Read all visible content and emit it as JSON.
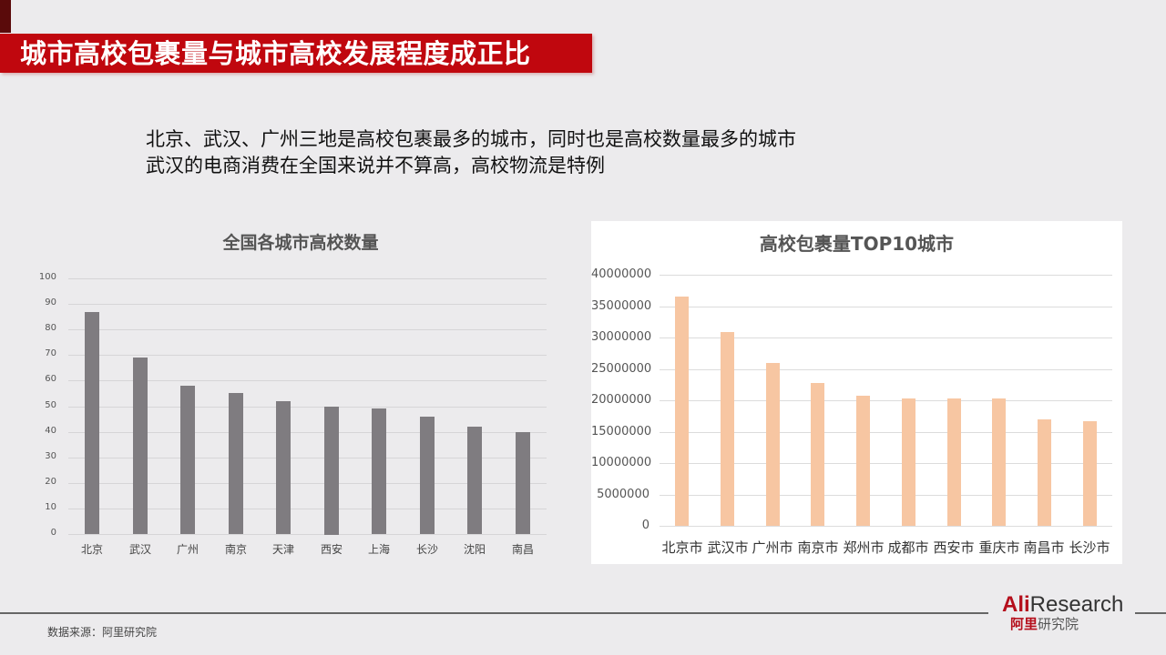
{
  "slide": {
    "title": "城市高校包裹量与城市高校发展程度成正比",
    "subtitle_lines": [
      "北京、武汉、广州三地是高校包裹最多的城市，同时也是高校数量最多的城市",
      "武汉的电商消费在全国来说并不算高，高校物流是特例"
    ],
    "source": "数据来源：阿里研究院",
    "logo": {
      "en_brand": "Ali",
      "en_suffix": "Research",
      "cn_brand": "阿里",
      "cn_suffix": "研究院"
    },
    "colors": {
      "banner": "#c0070e",
      "left_bar": "#7f7c80",
      "right_bar": "#f7c6a2",
      "background": "#ecebed"
    }
  },
  "chart_data": [
    {
      "type": "bar",
      "title": "全国各城市高校数量",
      "categories": [
        "北京",
        "武汉",
        "广州",
        "南京",
        "天津",
        "西安",
        "上海",
        "长沙",
        "沈阳",
        "南昌"
      ],
      "values": [
        87,
        69,
        58,
        55,
        52,
        50,
        49,
        46,
        42,
        40
      ],
      "xlabel": "",
      "ylabel": "",
      "ylim": [
        0,
        100
      ],
      "yticks": [
        "0",
        "10",
        "20",
        "30",
        "40",
        "50",
        "60",
        "70",
        "80",
        "90",
        "100"
      ],
      "grid": true,
      "legend": false
    },
    {
      "type": "bar",
      "title": "高校包裹量TOP10城市",
      "categories": [
        "北京市",
        "武汉市",
        "广州市",
        "南京市",
        "郑州市",
        "成都市",
        "西安市",
        "重庆市",
        "南昌市",
        "长沙市"
      ],
      "values": [
        36500000,
        30800000,
        25900000,
        22800000,
        20700000,
        20300000,
        20300000,
        20300000,
        17000000,
        16600000
      ],
      "xlabel": "",
      "ylabel": "",
      "ylim": [
        0,
        40000000
      ],
      "yticks": [
        "0",
        "5000000",
        "10000000",
        "15000000",
        "20000000",
        "25000000",
        "30000000",
        "35000000",
        "40000000"
      ],
      "grid": true,
      "legend": false
    }
  ]
}
